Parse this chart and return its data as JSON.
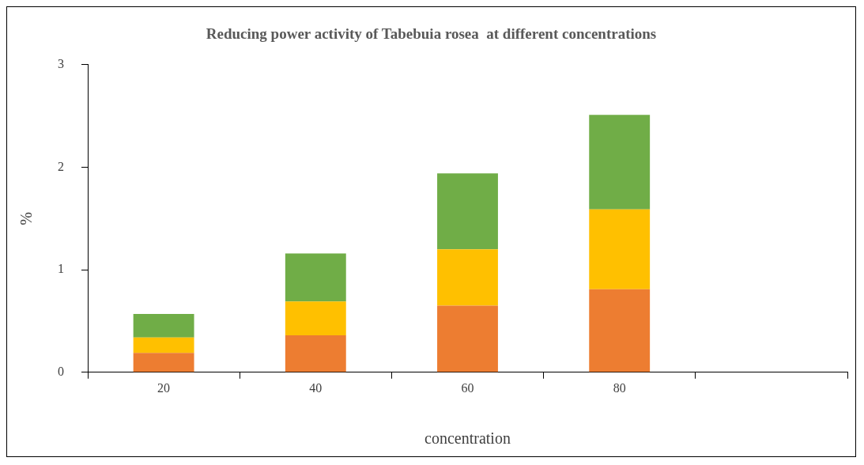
{
  "chart_data": {
    "type": "bar",
    "title": "Reducing power activity of Tabebuia rosea  at different concentrations",
    "xlabel": "concentration",
    "ylabel": "%",
    "categories": [
      "20",
      "40",
      "60",
      "80",
      null
    ],
    "stacked": true,
    "grid": false,
    "legend": false,
    "series": [
      {
        "color": "#ed7d31",
        "values": [
          0.19,
          0.36,
          0.65,
          0.81,
          null
        ]
      },
      {
        "color": "#ffc000",
        "values": [
          0.15,
          0.33,
          0.55,
          0.78,
          null
        ]
      },
      {
        "color": "#70ad47",
        "values": [
          0.23,
          0.47,
          0.74,
          0.92,
          null
        ]
      }
    ],
    "ylim": [
      0,
      3
    ],
    "yticks": [
      0,
      1,
      2,
      3
    ]
  }
}
